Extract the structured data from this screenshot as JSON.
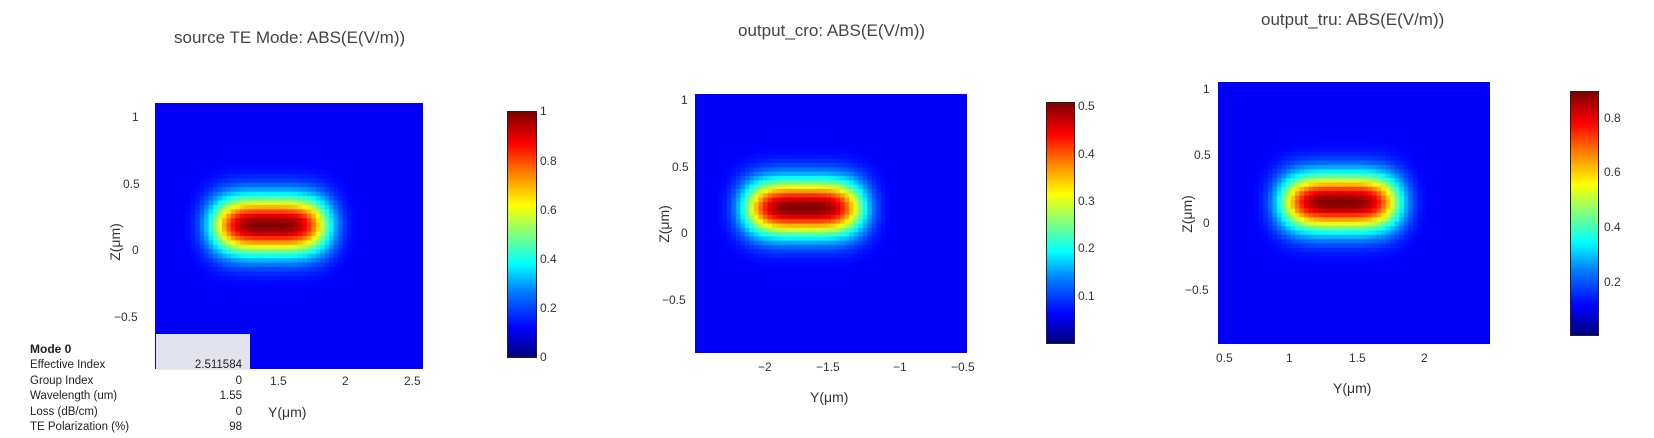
{
  "chart_data": [
    {
      "type": "heatmap",
      "title": "source TE Mode: ABS(E(V/m))",
      "xlabel": "Y(μm)",
      "ylabel": "Z(μm)",
      "x_ticks": [
        "1.5",
        "2",
        "2.5"
      ],
      "y_ticks": [
        "1",
        "0.5",
        "0",
        "−0.5"
      ],
      "colorbar_ticks": [
        "1",
        "0.8",
        "0.6",
        "0.4",
        "0.2",
        "0"
      ],
      "colorbar_range": [
        0,
        1
      ],
      "colorscale": "jet",
      "peak": {
        "y": 1.45,
        "z": 0.1,
        "value": 1.0
      }
    },
    {
      "type": "heatmap",
      "title": "output_cro: ABS(E(V/m))",
      "xlabel": "Y(μm)",
      "ylabel": "Z(μm)",
      "x_ticks": [
        "−2",
        "−1.5",
        "−1",
        "−0.5"
      ],
      "y_ticks": [
        "1",
        "0.5",
        "0",
        "−0.5"
      ],
      "colorbar_ticks": [
        "0.5",
        "0.4",
        "0.3",
        "0.2",
        "0.1"
      ],
      "colorbar_range": [
        0,
        0.52
      ],
      "colorscale": "jet",
      "peak": {
        "y": -1.5,
        "z": 0.1,
        "value": 0.5
      }
    },
    {
      "type": "heatmap",
      "title": "output_tru: ABS(E(V/m))",
      "xlabel": "Y(μm)",
      "ylabel": "Z(μm)",
      "x_ticks": [
        "0.5",
        "1",
        "1.5",
        "2"
      ],
      "y_ticks": [
        "1",
        "0.5",
        "0",
        "−0.5"
      ],
      "colorbar_ticks": [
        "0.8",
        "0.6",
        "0.4",
        "0.2"
      ],
      "colorbar_range": [
        0,
        0.9
      ],
      "colorscale": "jet",
      "peak": {
        "y": 1.5,
        "z": 0.1,
        "value": 0.9
      }
    }
  ],
  "mode_info": {
    "header": "Mode 0",
    "rows": [
      {
        "label": "Effective Index",
        "value": "2.511584"
      },
      {
        "label": "Group Index",
        "value": "0"
      },
      {
        "label": "Wavelength (um)",
        "value": "1.55"
      },
      {
        "label": "Loss (dB/cm)",
        "value": "0"
      },
      {
        "label": "TE Polarization (%)",
        "value": "98"
      }
    ]
  }
}
